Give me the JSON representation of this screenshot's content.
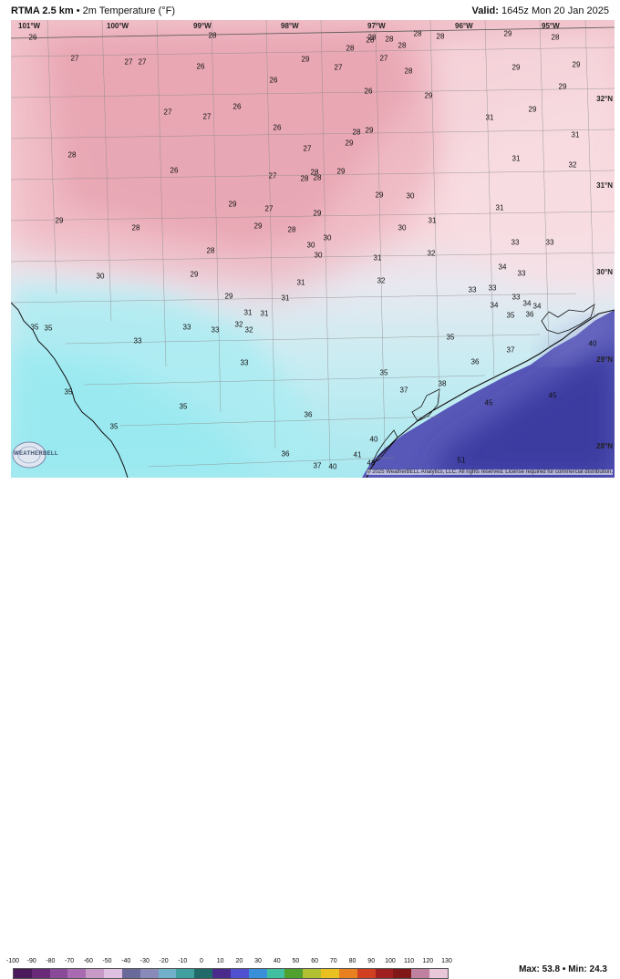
{
  "header": {
    "model": "RTMA 2.5 km",
    "separator": "•",
    "variable": "2m Temperature (°F)",
    "valid_label": "Valid:",
    "valid_time": "1645z Mon 20 Jan 2025"
  },
  "lon_labels": [
    "101°W",
    "100°W",
    "99°W",
    "98°W",
    "97°W",
    "96°W",
    "95°W"
  ],
  "lat_labels": [
    "32°N",
    "31°N",
    "30°N",
    "29°N",
    "28°N"
  ],
  "values": [
    [
      "26",
      36,
      41
    ],
    [
      "27",
      82,
      64
    ],
    [
      "27",
      141,
      68
    ],
    [
      "27",
      156,
      68
    ],
    [
      "26",
      220,
      73
    ],
    [
      "28",
      233,
      39
    ],
    [
      "29",
      335,
      65
    ],
    [
      "26",
      300,
      88
    ],
    [
      "27",
      371,
      74
    ],
    [
      "28",
      384,
      53
    ],
    [
      "28",
      408,
      41
    ],
    [
      "28",
      406,
      44
    ],
    [
      "28",
      427,
      43
    ],
    [
      "28",
      441,
      50
    ],
    [
      "28",
      458,
      37
    ],
    [
      "28",
      483,
      40
    ],
    [
      "27",
      421,
      64
    ],
    [
      "28",
      448,
      78
    ],
    [
      "26",
      404,
      100
    ],
    [
      "29",
      470,
      105
    ],
    [
      "29",
      557,
      37
    ],
    [
      "28",
      609,
      41
    ],
    [
      "29",
      566,
      74
    ],
    [
      "29",
      632,
      71
    ],
    [
      "29",
      617,
      95
    ],
    [
      "29",
      584,
      120
    ],
    [
      "31",
      537,
      129
    ],
    [
      "31",
      631,
      148
    ],
    [
      "31",
      566,
      174
    ],
    [
      "32",
      628,
      181
    ],
    [
      "27",
      184,
      123
    ],
    [
      "27",
      227,
      128
    ],
    [
      "26",
      260,
      117
    ],
    [
      "26",
      304,
      140
    ],
    [
      "28",
      79,
      170
    ],
    [
      "26",
      191,
      187
    ],
    [
      "27",
      337,
      163
    ],
    [
      "28",
      391,
      145
    ],
    [
      "29",
      405,
      143
    ],
    [
      "29",
      383,
      157
    ],
    [
      "28",
      345,
      189
    ],
    [
      "28",
      334,
      196
    ],
    [
      "28",
      348,
      195
    ],
    [
      "29",
      374,
      188
    ],
    [
      "27",
      299,
      193
    ],
    [
      "29",
      416,
      214
    ],
    [
      "30",
      450,
      215
    ],
    [
      "31",
      474,
      242
    ],
    [
      "30",
      441,
      250
    ],
    [
      "31",
      548,
      228
    ],
    [
      "29",
      65,
      242
    ],
    [
      "28",
      149,
      250
    ],
    [
      "29",
      255,
      224
    ],
    [
      "27",
      295,
      229
    ],
    [
      "29",
      283,
      248
    ],
    [
      "28",
      320,
      252
    ],
    [
      "29",
      348,
      234
    ],
    [
      "30",
      341,
      269
    ],
    [
      "30",
      359,
      261
    ],
    [
      "30",
      349,
      280
    ],
    [
      "31",
      414,
      283
    ],
    [
      "32",
      473,
      278
    ],
    [
      "33",
      565,
      266
    ],
    [
      "33",
      603,
      266
    ],
    [
      "34",
      551,
      293
    ],
    [
      "33",
      572,
      300
    ],
    [
      "28",
      231,
      275
    ],
    [
      "29",
      213,
      301
    ],
    [
      "30",
      110,
      303
    ],
    [
      "31",
      330,
      310
    ],
    [
      "32",
      418,
      308
    ],
    [
      "33",
      518,
      318
    ],
    [
      "33",
      540,
      316
    ],
    [
      "34",
      542,
      335
    ],
    [
      "33",
      566,
      326
    ],
    [
      "34",
      578,
      333
    ],
    [
      "34",
      589,
      336
    ],
    [
      "35",
      560,
      346
    ],
    [
      "36",
      581,
      345
    ],
    [
      "29",
      251,
      325
    ],
    [
      "31",
      313,
      327
    ],
    [
      "31",
      272,
      343
    ],
    [
      "31",
      290,
      344
    ],
    [
      "32",
      262,
      356
    ],
    [
      "32",
      273,
      362
    ],
    [
      "33",
      205,
      359
    ],
    [
      "33",
      236,
      362
    ],
    [
      "35",
      38,
      359
    ],
    [
      "35",
      53,
      360
    ],
    [
      "33",
      151,
      374
    ],
    [
      "35",
      494,
      370
    ],
    [
      "37",
      560,
      384
    ],
    [
      "40",
      650,
      377
    ],
    [
      "33",
      268,
      398
    ],
    [
      "36",
      521,
      397
    ],
    [
      "35",
      421,
      409
    ],
    [
      "37",
      443,
      428
    ],
    [
      "38",
      485,
      421
    ],
    [
      "35",
      75,
      430
    ],
    [
      "35",
      201,
      446
    ],
    [
      "45",
      536,
      442
    ],
    [
      "45",
      606,
      434
    ],
    [
      "36",
      338,
      455
    ],
    [
      "35",
      125,
      468
    ],
    [
      "36",
      313,
      498
    ],
    [
      "37",
      348,
      511
    ],
    [
      "40",
      365,
      512
    ],
    [
      "41",
      392,
      499
    ],
    [
      "43",
      407,
      508
    ],
    [
      "40",
      410,
      482
    ],
    [
      "51",
      506,
      505
    ]
  ],
  "copyright": "© 2025 WeatherBELL Analytics, LLC. All rights reserved. License required for commercial distribution.",
  "logo_text": "WEATHERBELL",
  "legend": {
    "ticks": [
      "-100",
      "-90",
      "-80",
      "-70",
      "-60",
      "-50",
      "-40",
      "-30",
      "-20",
      "-10",
      "0",
      "10",
      "20",
      "30",
      "40",
      "50",
      "60",
      "70",
      "80",
      "90",
      "100",
      "110",
      "120",
      "130"
    ],
    "colors": [
      "#4a1a5a",
      "#6a2a7a",
      "#8a4a9a",
      "#a86ab0",
      "#c89ac8",
      "#e0c0e0",
      "#6a6a9a",
      "#8a8ab8",
      "#70b0c8",
      "#40a0a0",
      "#206a6a",
      "#4a2a8a",
      "#5050d0",
      "#3a90d8",
      "#40c0a0",
      "#50a030",
      "#b0c030",
      "#e8c020",
      "#e88020",
      "#d04020",
      "#a02020",
      "#801818",
      "#c080a0",
      "#e8c8d8"
    ],
    "max_label": "Max: 53.8",
    "min_label": "Min: 24.3",
    "dot": "•"
  }
}
